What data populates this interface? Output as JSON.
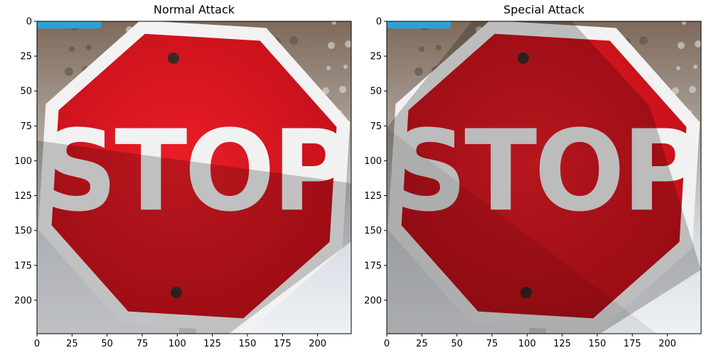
{
  "figure": {
    "panels": [
      {
        "title": "Normal Attack",
        "shadow": "band"
      },
      {
        "title": "Special Attack",
        "shadow": "wedge"
      }
    ],
    "image_size": [
      224,
      224
    ],
    "xticks": [
      0,
      25,
      50,
      75,
      100,
      125,
      150,
      175,
      200
    ],
    "yticks": [
      0,
      25,
      50,
      75,
      100,
      125,
      150,
      175,
      200
    ],
    "sign_text": "STOP",
    "colors": {
      "sign_red": "#d8141c",
      "sign_border": "#f2f2f2",
      "shadow": "#000000",
      "background_snow": "#c9cdd3",
      "sky_blue": "#2aa2d8"
    }
  }
}
